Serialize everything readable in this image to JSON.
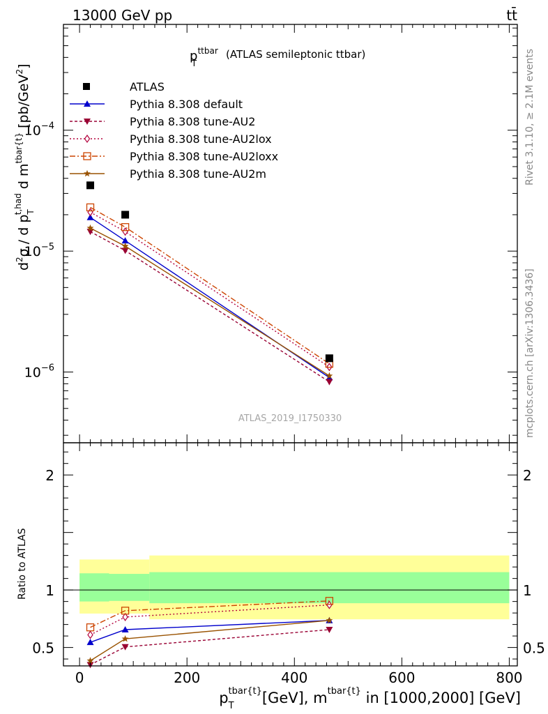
{
  "header": {
    "energy_label": "13000 GeV pp",
    "process_label": "tt̄",
    "side_label_top": "Rivet 3.1.10, ≥ 2.1M events",
    "side_label_bottom": "mcplots.cern.ch [arXiv:1306.3436]",
    "watermark": "ATLAS_2019_I1750330"
  },
  "chart_data": [
    {
      "type": "line",
      "title_main": "p",
      "title_sub": "T",
      "title_sup": "ttbar",
      "title_rest": "(ATLAS semileptonic ttbar)",
      "ylabel": {
        "a": "d",
        "a_sup": "2",
        "b": "σ / d p",
        "b_sub": "T",
        "b_sup": "t,had",
        "c": " d m",
        "c_sup": "tbar{t}",
        "d": " [pb/GeV",
        "d_sup": "2",
        "e": "]"
      },
      "log_y": true,
      "ylim": [
        2.6e-07,
        0.00075
      ],
      "xlim": [
        -30,
        815
      ],
      "y_tick_labels": [
        {
          "value": 1e-06,
          "base": "10",
          "exp": "−6"
        },
        {
          "value": 1e-05,
          "base": "10",
          "exp": "−5"
        },
        {
          "value": 0.0001,
          "base": "10",
          "exp": "−4"
        }
      ],
      "legend_position": "top-left",
      "data": {
        "name": "ATLAS",
        "x": [
          20,
          85,
          465
        ],
        "y": [
          3.5e-05,
          2e-05,
          1.3e-06
        ]
      },
      "series": [
        {
          "name": "Pythia 8.308 default",
          "color": "#0000cc",
          "dash": "",
          "marker": "triangle-up",
          "x": [
            20,
            85,
            465
          ],
          "y": [
            1.9e-05,
            1.22e-05,
            9e-07
          ]
        },
        {
          "name": "Pythia 8.308 tune-AU2",
          "color": "#990033",
          "dash": "4,3",
          "marker": "triangle-down",
          "x": [
            20,
            85,
            465
          ],
          "y": [
            1.45e-05,
            1.01e-05,
            8.3e-07
          ]
        },
        {
          "name": "Pythia 8.308 tune-AU2lox",
          "color": "#b3003c",
          "dash": "2,3",
          "marker": "diamond-open",
          "x": [
            20,
            85,
            465
          ],
          "y": [
            2.1e-05,
            1.45e-05,
            1.1e-06
          ]
        },
        {
          "name": "Pythia 8.308 tune-AU2loxx",
          "color": "#cc4400",
          "dash": "8,3,2,3",
          "marker": "square-open",
          "x": [
            20,
            85,
            465
          ],
          "y": [
            2.3e-05,
            1.58e-05,
            1.17e-06
          ]
        },
        {
          "name": "Pythia 8.308 tune-AU2m",
          "color": "#995200",
          "dash": "",
          "marker": "star",
          "x": [
            20,
            85,
            465
          ],
          "y": [
            1.55e-05,
            1.1e-05,
            9.3e-07
          ]
        }
      ]
    },
    {
      "type": "line",
      "ylabel": "Ratio to ATLAS",
      "ylim": [
        0.34,
        2.28
      ],
      "xlim": [
        -30,
        815
      ],
      "y_tick_labels": [
        {
          "value": 0.5,
          "label": "0.5"
        },
        {
          "value": 1,
          "label": "1"
        },
        {
          "value": 2,
          "label": "2"
        }
      ],
      "x_tick_labels": [
        {
          "value": 0,
          "label": "0"
        },
        {
          "value": 200,
          "label": "200"
        },
        {
          "value": 400,
          "label": "400"
        },
        {
          "value": 600,
          "label": "600"
        },
        {
          "value": 800,
          "label": "800"
        }
      ],
      "xlabel": {
        "a": "p",
        "a_sub": "T",
        "a_sup": "tbar{t}",
        "b": "[GeV], m",
        "b_sup": "tbar{t}",
        "c": " in [1000,2000] [GeV]"
      },
      "bands": [
        {
          "name": "stat-syst",
          "color": "#ffff99",
          "bins": [
            {
              "x0": 0,
              "x1": 55,
              "lo": 0.795,
              "hi": 1.265
            },
            {
              "x0": 55,
              "x1": 130,
              "lo": 0.795,
              "hi": 1.265
            },
            {
              "x0": 130,
              "x1": 800,
              "lo": 0.745,
              "hi": 1.3
            }
          ]
        },
        {
          "name": "stat",
          "color": "#99ff99",
          "bins": [
            {
              "x0": 0,
              "x1": 55,
              "lo": 0.9,
              "hi": 1.145
            },
            {
              "x0": 55,
              "x1": 130,
              "lo": 0.905,
              "hi": 1.14
            },
            {
              "x0": 130,
              "x1": 800,
              "lo": 0.885,
              "hi": 1.155
            }
          ]
        }
      ],
      "series": [
        {
          "name": "Pythia 8.308 default",
          "color": "#0000cc",
          "dash": "",
          "marker": "triangle-up",
          "x": [
            20,
            85,
            465
          ],
          "y": [
            0.545,
            0.655,
            0.735
          ]
        },
        {
          "name": "Pythia 8.308 tune-AU2",
          "color": "#990033",
          "dash": "4,3",
          "marker": "triangle-down",
          "x": [
            20,
            85,
            465
          ],
          "y": [
            0.35,
            0.505,
            0.655
          ]
        },
        {
          "name": "Pythia 8.308 tune-AU2lox",
          "color": "#b3003c",
          "dash": "2,3",
          "marker": "diamond-open",
          "x": [
            20,
            85,
            465
          ],
          "y": [
            0.61,
            0.765,
            0.87
          ]
        },
        {
          "name": "Pythia 8.308 tune-AU2loxx",
          "color": "#cc4400",
          "dash": "8,3,2,3",
          "marker": "square-open",
          "x": [
            20,
            85,
            465
          ],
          "y": [
            0.675,
            0.82,
            0.905
          ]
        },
        {
          "name": "Pythia 8.308 tune-AU2m",
          "color": "#995200",
          "dash": "",
          "marker": "star",
          "x": [
            20,
            85,
            465
          ],
          "y": [
            0.385,
            0.575,
            0.735
          ]
        }
      ]
    }
  ]
}
